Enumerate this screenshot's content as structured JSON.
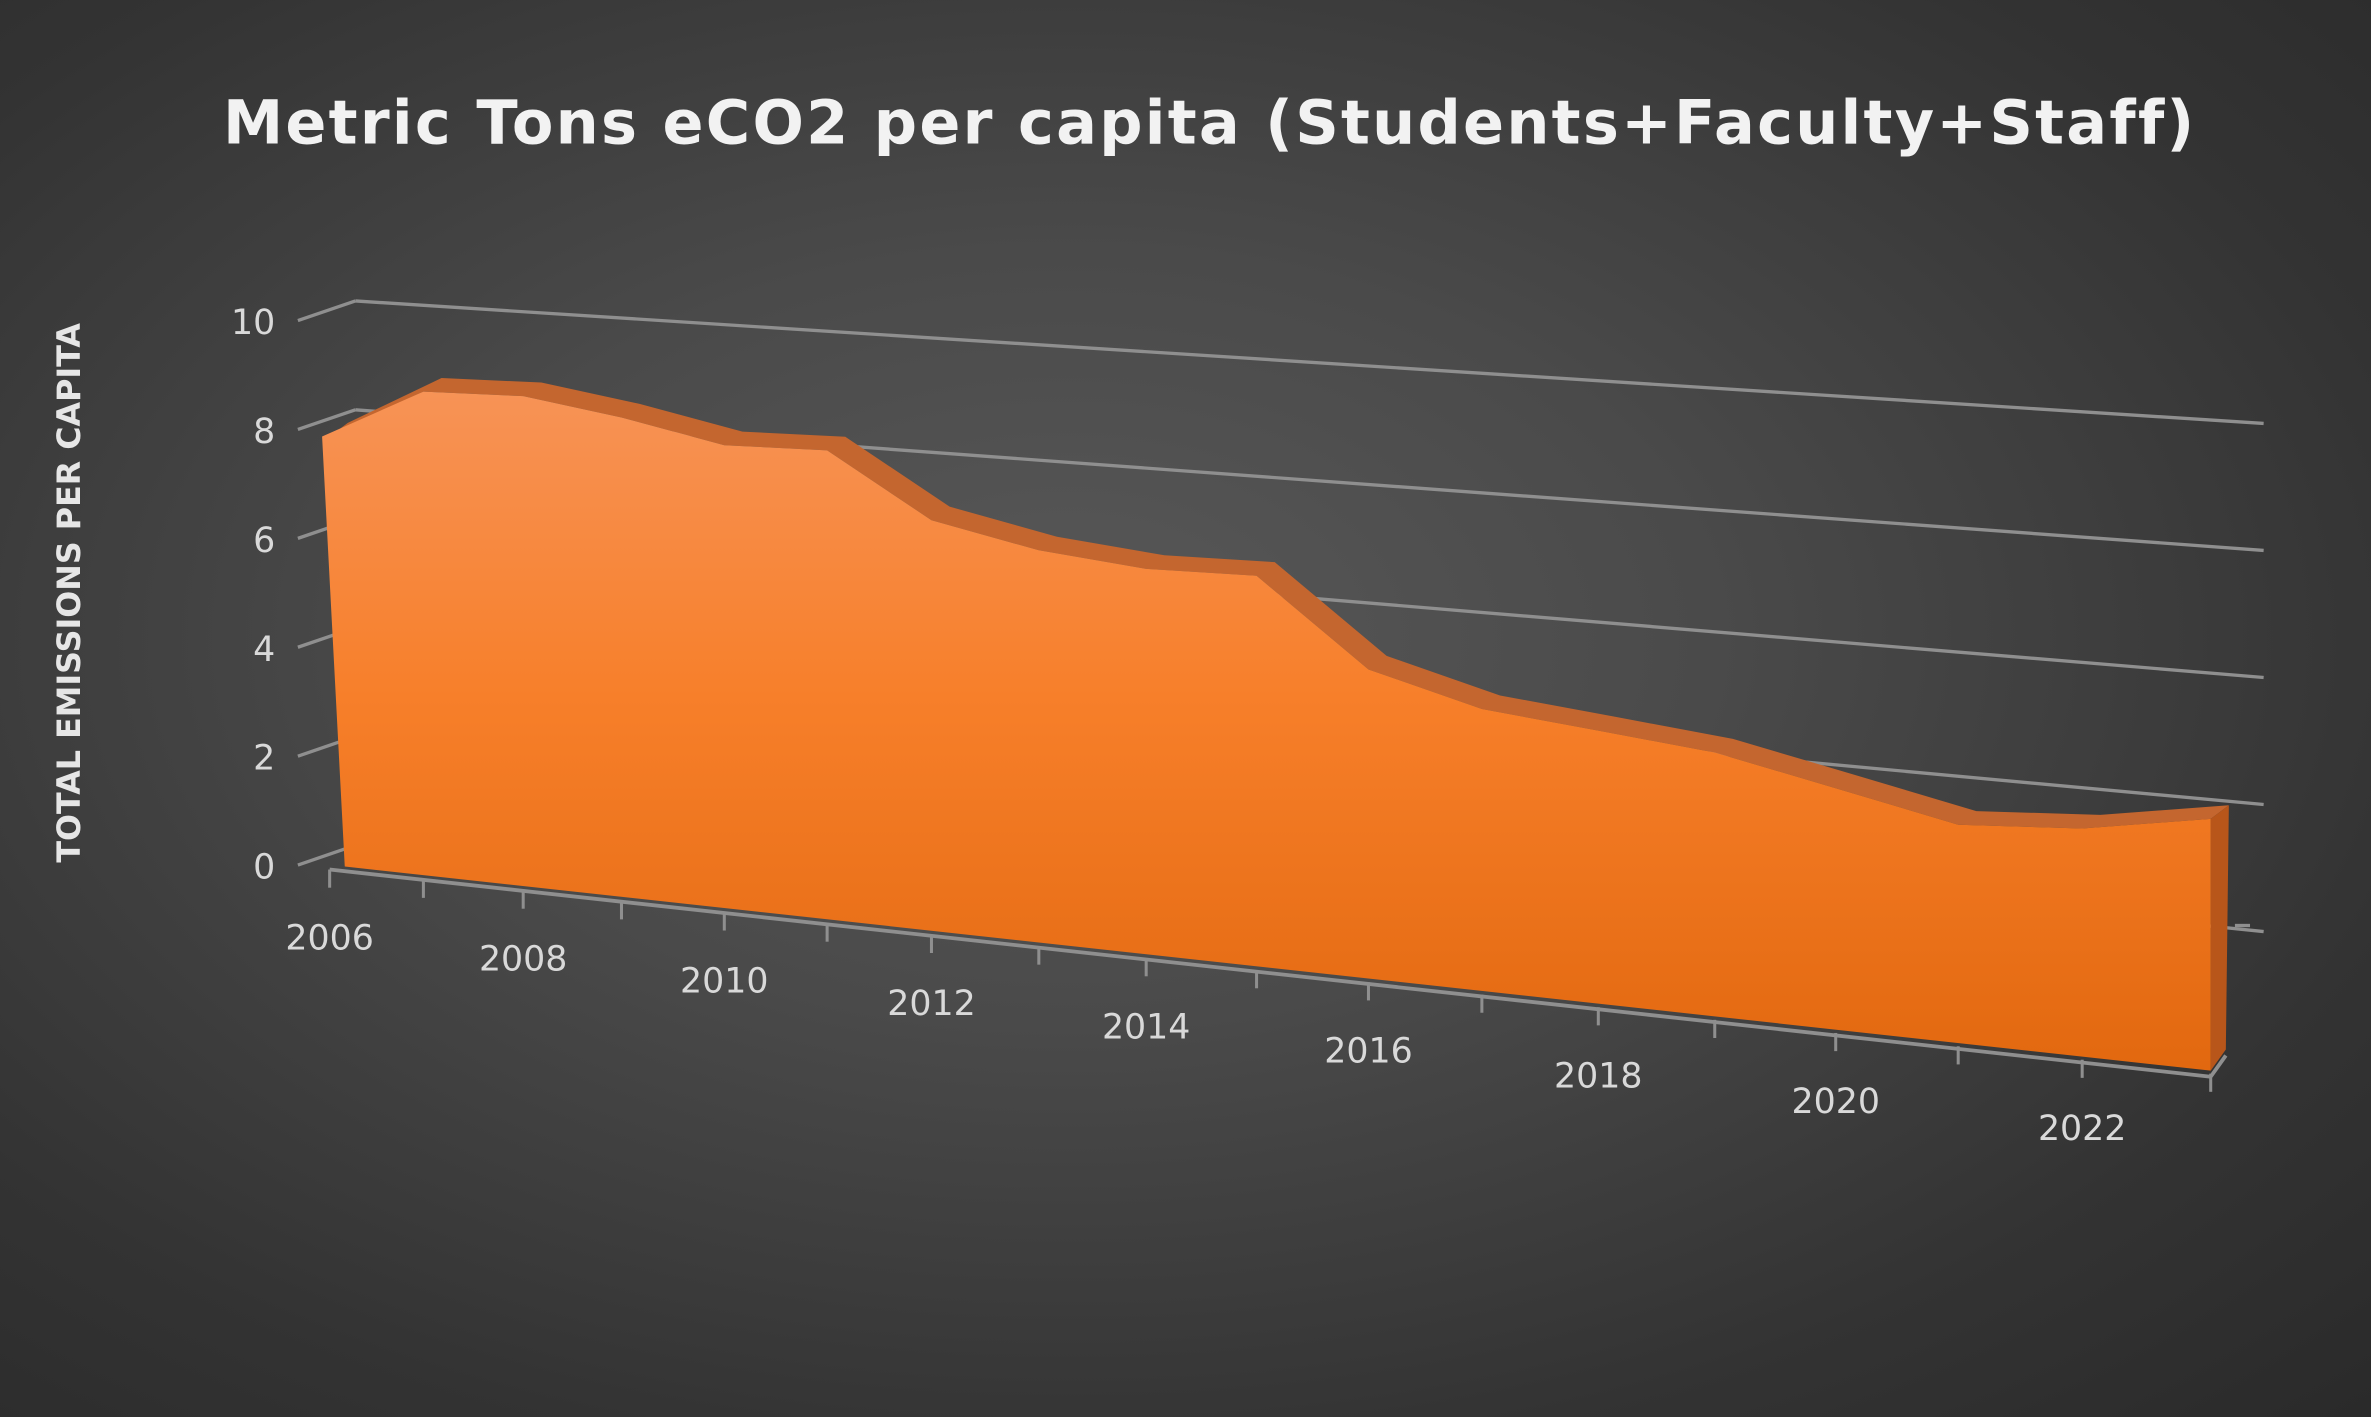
{
  "chart_data": {
    "type": "area",
    "variant": "3d-area",
    "title": "Metric Tons eCO2 per capita (Students+Faculty+Staff)",
    "xlabel": "",
    "ylabel": "TOTAL EMISSIONS PER CAPITA",
    "x": [
      2006,
      2007,
      2008,
      2009,
      2010,
      2011,
      2012,
      2013,
      2014,
      2015,
      2016,
      2017,
      2018,
      2019,
      2020,
      2021,
      2022,
      2023
    ],
    "values": [
      7.9,
      8.8,
      8.8,
      8.5,
      8.1,
      8.1,
      7.0,
      6.6,
      6.4,
      6.4,
      5.0,
      4.5,
      4.3,
      4.1,
      3.7,
      3.3,
      3.4,
      3.7
    ],
    "x_tick_labels": [
      "2006",
      "2008",
      "2010",
      "2012",
      "2014",
      "2016",
      "2018",
      "2020",
      "2022"
    ],
    "y_tick_labels": [
      "0",
      "2",
      "4",
      "6",
      "8",
      "10"
    ],
    "ylim": [
      0,
      10
    ],
    "grid": true,
    "legend": "none",
    "colors": {
      "area_top": "#f79356",
      "area_bottom": "#e2680f",
      "ledge": "#c4662f",
      "gridline": "#8c8c8c",
      "text": "#d9d9d9"
    }
  }
}
